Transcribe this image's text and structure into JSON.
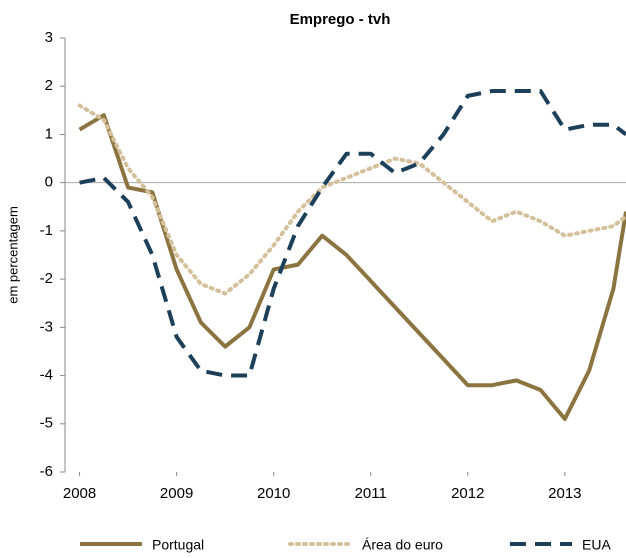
{
  "chart_data": {
    "type": "line",
    "title": "Emprego - tvh",
    "y_label": "em percentagem",
    "x": [
      2008,
      2008.25,
      2008.5,
      2008.75,
      2009,
      2009.25,
      2009.5,
      2009.75,
      2010,
      2010.25,
      2010.5,
      2010.75,
      2011,
      2011.25,
      2011.5,
      2011.75,
      2012,
      2012.25,
      2012.5,
      2012.75,
      2013,
      2013.25,
      2013.5,
      2013.63
    ],
    "series": [
      {
        "name": "Portugal",
        "color": "#8c7440",
        "style": "solid",
        "values": [
          1.1,
          1.4,
          -0.1,
          -0.2,
          -1.8,
          -2.9,
          -3.4,
          -3.0,
          -1.8,
          -1.7,
          -1.1,
          -1.5,
          -2.04,
          -2.58,
          -3.12,
          -3.66,
          -4.2,
          -4.2,
          -4.1,
          -4.3,
          -4.9,
          -3.9,
          -2.2,
          -0.6
        ]
      },
      {
        "name": "Área do euro",
        "color": "#d4c19b",
        "style": "dotted",
        "values": [
          1.6,
          1.3,
          0.3,
          -0.3,
          -1.5,
          -2.1,
          -2.3,
          -1.9,
          -1.3,
          -0.6,
          -0.1,
          0.1,
          0.3,
          0.5,
          0.4,
          0.0,
          -0.4,
          -0.8,
          -0.6,
          -0.8,
          -1.1,
          -1.0,
          -0.9,
          -0.7
        ]
      },
      {
        "name": "EUA",
        "color": "#1c3f5a",
        "style": "dashed",
        "values": [
          0.0,
          0.1,
          -0.4,
          -1.5,
          -3.2,
          -3.9,
          -4.0,
          -4.0,
          -2.2,
          -0.9,
          -0.1,
          0.6,
          0.6,
          0.2,
          0.4,
          1.0,
          1.8,
          1.9,
          1.9,
          1.9,
          1.1,
          1.2,
          1.2,
          1.0
        ]
      }
    ],
    "xlim": [
      2007.85,
      2013.63
    ],
    "xticks": [
      2008,
      2009,
      2010,
      2011,
      2012,
      2013
    ],
    "ylim": [
      -6,
      3
    ],
    "yticks": [
      -6,
      -5,
      -4,
      -3,
      -2,
      -1,
      0,
      1,
      2,
      3
    ],
    "legend": "bottom"
  }
}
